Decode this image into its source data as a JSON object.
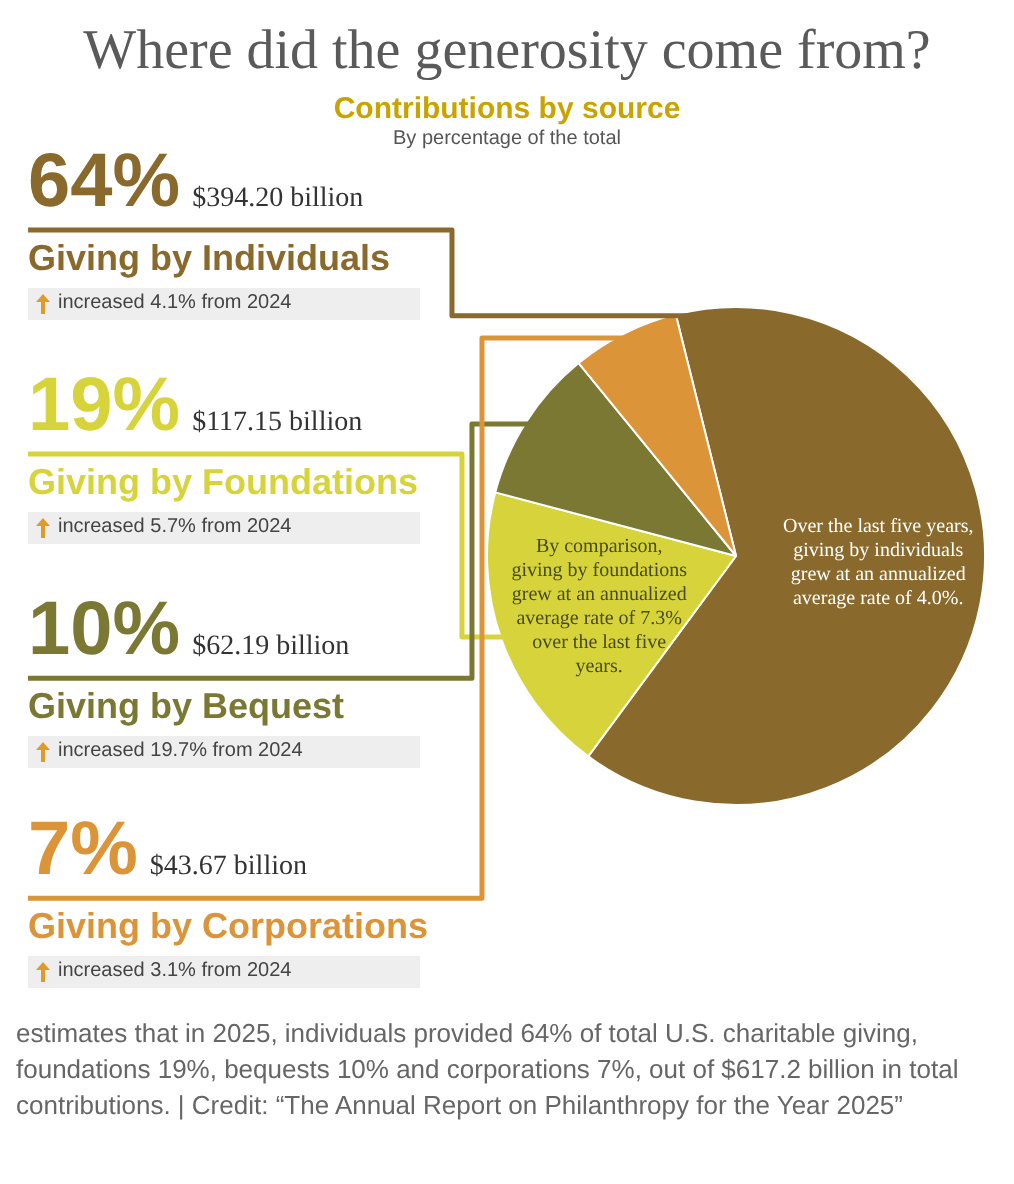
{
  "chart_data": {
    "type": "pie",
    "title": "Where did the generosity come from?",
    "subtitle": "Contributions by source",
    "categories": [
      "Giving by Individuals",
      "Giving by Foundations",
      "Giving by Bequest",
      "Giving by Corporations"
    ],
    "values": [
      64,
      19,
      10,
      7
    ],
    "colors": [
      "#8a6a2c",
      "#d6d43a",
      "#7b7834",
      "#dc9438"
    ],
    "value_labels": [
      "64%",
      "19%",
      "10%",
      "7%"
    ],
    "annotations": [
      "By percentage of the total",
      "$394.20 billion",
      "$117.15 billion",
      "$62.19 billion",
      "$43.67 billion",
      "increased 4.1% from 2024",
      "increased 5.7% from 2024",
      "increased 19.7% from 2024",
      "increased 3.1% from 2024",
      "Over the last five years, giving by individuals grew at an annualized average rate of 4.0%.",
      "By comparison, giving by foundations grew at an annualized average rate of 7.3% over the last five years.",
      "estimates that in 2025, individuals provided 64% of total U.S. charitable giving, foundations 19%, bequests 10% and corporations 7%, out of $617.2 billion in total contributions. | Credit: “The Annual Report on Philanthropy for the Year 2025”"
    ]
  }
}
